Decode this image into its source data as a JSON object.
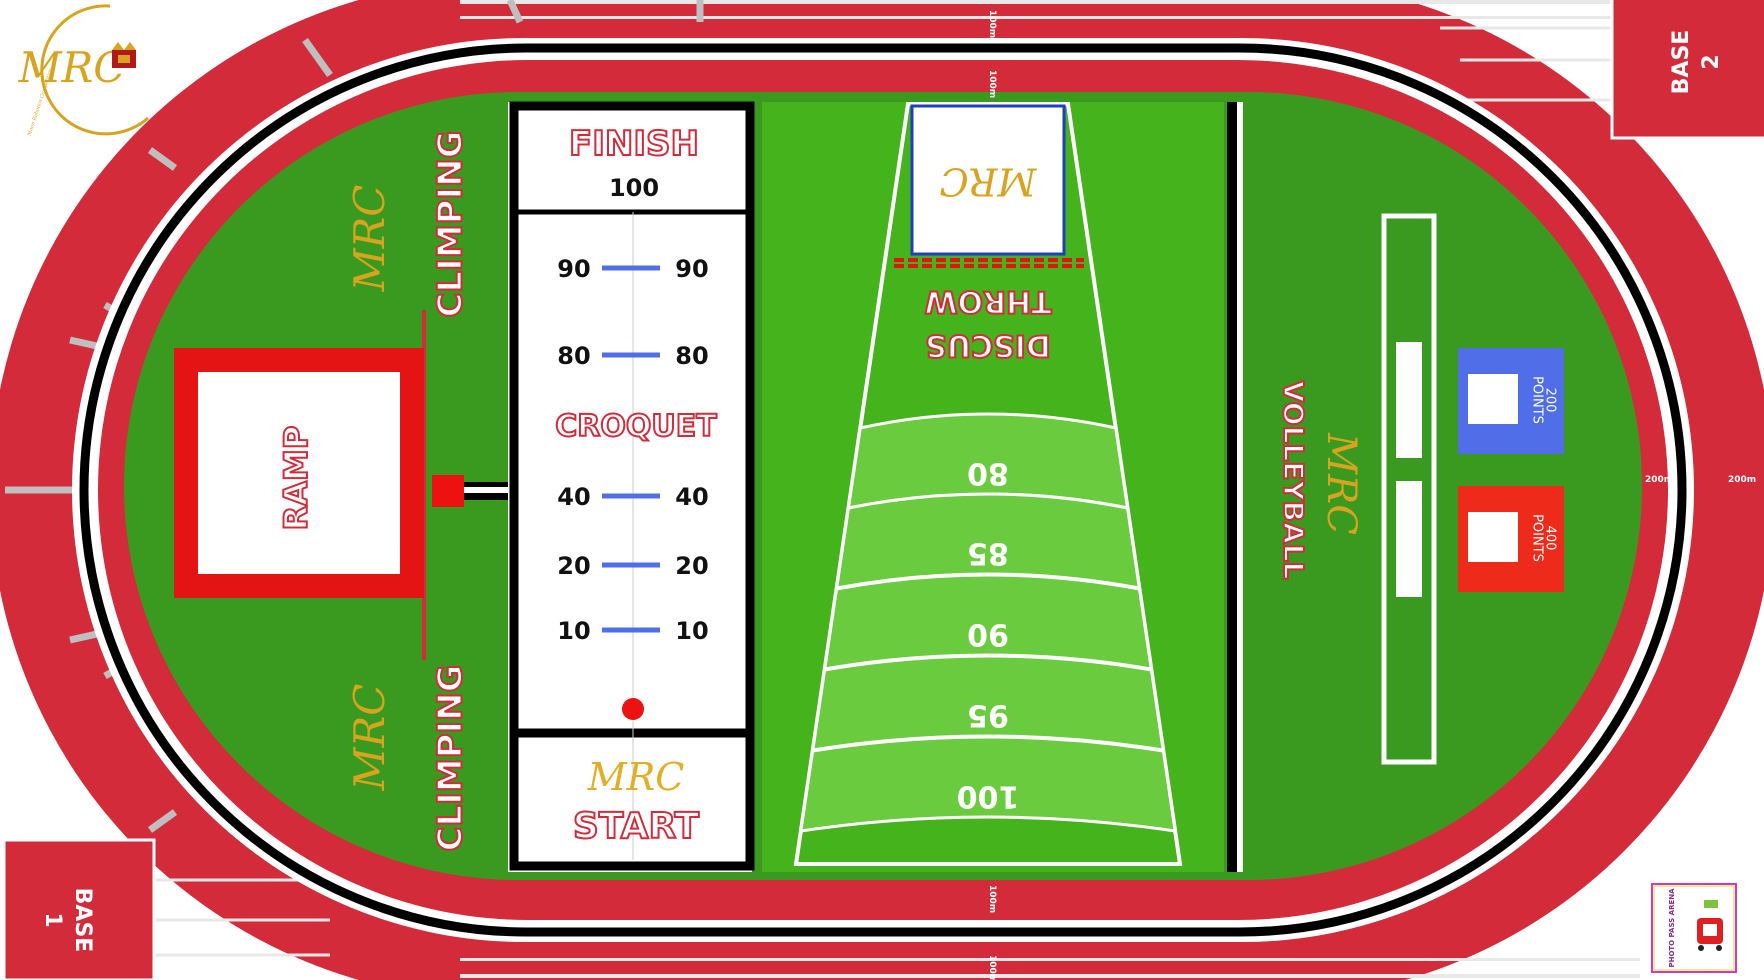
{
  "logo": {
    "text": "MRC",
    "tagline": "Moon Robotics Competition"
  },
  "track": {
    "marks_100m": [
      "100m",
      "100m",
      "100m",
      "100m"
    ],
    "marks_200m": [
      "200m",
      "200m"
    ]
  },
  "bases": [
    {
      "label": "BASE",
      "number": "1"
    },
    {
      "label": "BASE",
      "number": "2"
    }
  ],
  "zones": {
    "climbing_top": "CLIMPING",
    "climbing_bottom": "CLIMPING",
    "ramp": "RAMP",
    "watermark": "MRC",
    "croquet": {
      "title": "CROQUET",
      "finish": "FINISH",
      "finish_score": "100",
      "start": "START",
      "start_brand": "MRC",
      "marks": [
        {
          "left": "90",
          "right": "90"
        },
        {
          "left": "80",
          "right": "80"
        },
        {
          "left": "40",
          "right": "40"
        },
        {
          "left": "20",
          "right": "20"
        },
        {
          "left": "10",
          "right": "10"
        }
      ]
    },
    "discus": {
      "title_line1": "DISCUS",
      "title_line2": "THROW",
      "box_brand": "MRC",
      "scores": [
        "80",
        "85",
        "90",
        "95",
        "100"
      ]
    },
    "volleyball": {
      "title": "VOLLEYBALL",
      "brand": "MRC",
      "targets": [
        {
          "value": "200",
          "unit": "POINTS",
          "color": "#4f6ee8"
        },
        {
          "value": "400",
          "unit": "POINTS",
          "color": "#ee2a1a"
        }
      ]
    }
  },
  "badge": {
    "text": "PHOTO PASS ARENA"
  },
  "colors": {
    "track_red": "#d42b3b",
    "field_green": "#3a9a1f",
    "lane_green": "#45b31b",
    "gold": "#d8a420"
  }
}
